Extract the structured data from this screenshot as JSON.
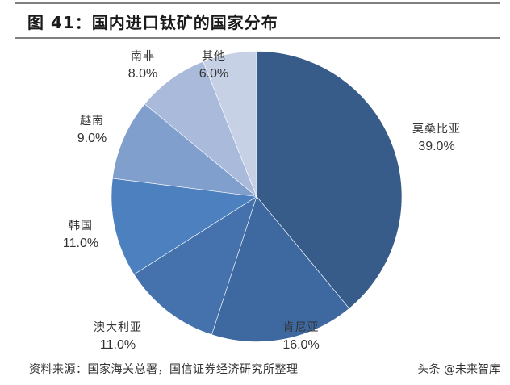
{
  "title": "图 41：国内进口钛矿的国家分布",
  "source": "资料来源：国家海关总署，国信证券经济研究所整理",
  "watermark": "头条 @未来智库",
  "chart_data": {
    "type": "pie",
    "title": "图 41：国内进口钛矿的国家分布",
    "start_angle_deg": 0,
    "direction": "clockwise",
    "categories": [
      "莫桑比亚",
      "肯尼亚",
      "澳大利亚",
      "韩国",
      "越南",
      "南非",
      "其他"
    ],
    "values": [
      39.0,
      16.0,
      11.0,
      11.0,
      9.0,
      8.0,
      6.0
    ],
    "labels": [
      "39.0%",
      "16.0%",
      "11.0%",
      "11.0%",
      "9.0%",
      "8.0%",
      "6.0%"
    ],
    "colors": [
      "#375C8A",
      "#3E68A0",
      "#4572AC",
      "#4C80BF",
      "#809FCC",
      "#A9BADA",
      "#C7D1E6"
    ],
    "legend": "none (data labels outside slices)"
  },
  "slices": [
    {
      "name": "莫桑比亚",
      "pct": "39.0%"
    },
    {
      "name": "肯尼亚",
      "pct": "16.0%"
    },
    {
      "name": "澳大利亚",
      "pct": "11.0%"
    },
    {
      "name": "韩国",
      "pct": "11.0%"
    },
    {
      "name": "越南",
      "pct": "9.0%"
    },
    {
      "name": "南非",
      "pct": "8.0%"
    },
    {
      "name": "其他",
      "pct": "6.0%"
    }
  ]
}
